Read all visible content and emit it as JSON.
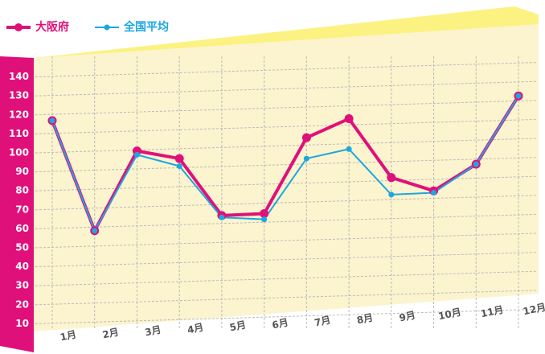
{
  "chart_data": {
    "type": "line",
    "categories": [
      "1月",
      "2月",
      "3月",
      "4月",
      "5月",
      "6月",
      "7月",
      "8月",
      "9月",
      "10月",
      "11月",
      "12月"
    ],
    "series": [
      {
        "name": "大阪府",
        "color": "#e0107a",
        "values": [
          117,
          59,
          101,
          97,
          67,
          68,
          108,
          118,
          87,
          80,
          94,
          130
        ]
      },
      {
        "name": "全国平均",
        "color": "#1da7e0",
        "values": [
          117,
          59,
          99,
          93,
          66,
          65,
          97,
          102,
          78,
          79,
          94,
          130
        ]
      }
    ],
    "ylim": [
      0,
      150
    ],
    "yticks": [
      10,
      20,
      30,
      40,
      50,
      60,
      70,
      80,
      90,
      100,
      110,
      120,
      130,
      140
    ],
    "grid": true
  }
}
